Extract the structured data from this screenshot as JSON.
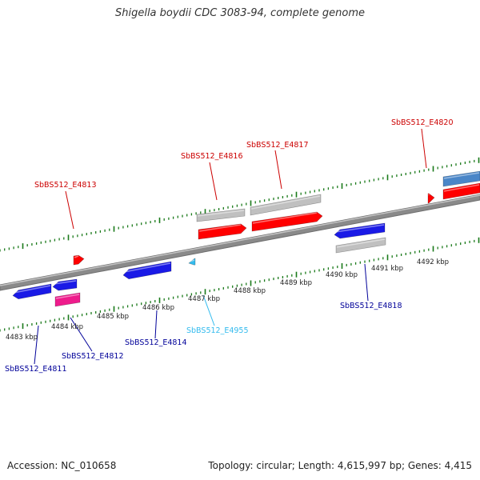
{
  "title": "Shigella boydii CDC 3083-94, complete genome",
  "footer": {
    "accession": "Accession: NC_010658",
    "stats": "Topology: circular; Length: 4,615,997 bp; Genes: 4,415"
  },
  "colors": {
    "forward_gene": "#ff0000",
    "reverse_gene": "#1a1ae6",
    "rna": "#c0c0c0",
    "pseudo": "#ee1c8c",
    "highlight": "#33bbee",
    "steel": "#4a86c8",
    "backbone": "#888888",
    "tick": "#1a7a1a",
    "forward_label": "#cc0000",
    "reverse_label": "#000099",
    "cyan_label": "#33bbee"
  },
  "axis_labels": {
    "outer": [],
    "inner": [
      "4483 kbp",
      "4484 kbp",
      "4485 kbp",
      "4486 kbp",
      "4487 kbp",
      "4488 kbp",
      "4489 kbp",
      "4490 kbp",
      "4491 kbp",
      "4492 kbp"
    ]
  },
  "gene_labels": [
    {
      "name": "SbBS512_E4813",
      "strand": "forward"
    },
    {
      "name": "SbBS512_E4816",
      "strand": "forward"
    },
    {
      "name": "SbBS512_E4817",
      "strand": "forward"
    },
    {
      "name": "SbBS512_E4820",
      "strand": "forward"
    },
    {
      "name": "SbBS512_E4818",
      "strand": "reverse"
    },
    {
      "name": "SbBS512_E4955",
      "strand": "highlight"
    },
    {
      "name": "SbBS512_E4814",
      "strand": "reverse"
    },
    {
      "name": "SbBS512_E4812",
      "strand": "reverse"
    },
    {
      "name": "SbBS512_E4811",
      "strand": "reverse"
    }
  ]
}
